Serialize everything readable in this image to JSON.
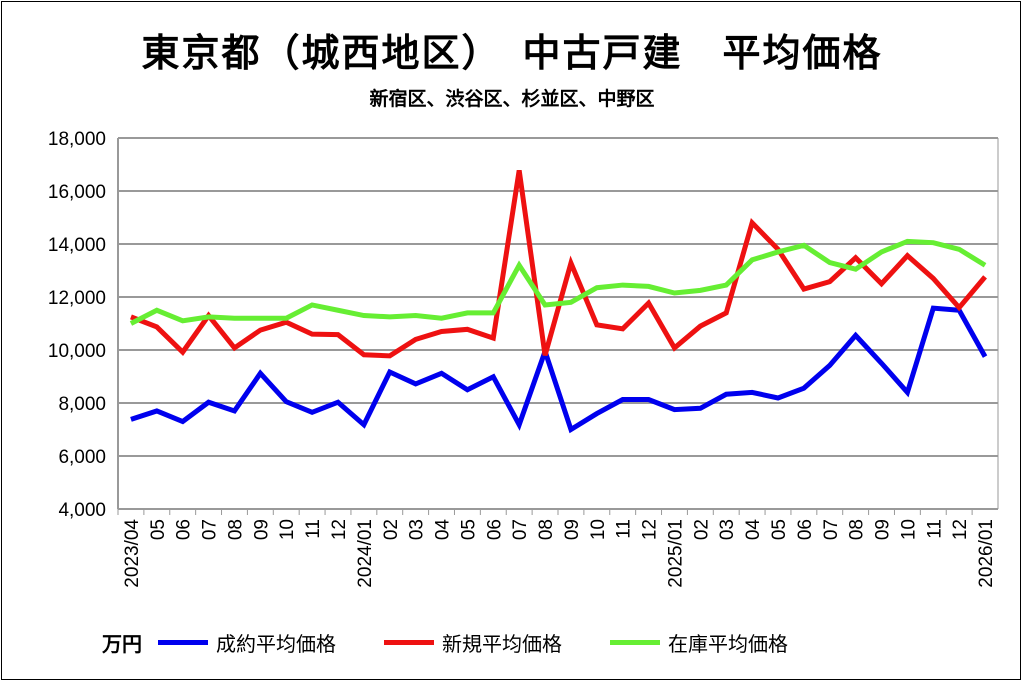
{
  "chart_data": {
    "type": "line",
    "title": "東京都（城西地区）　中古戸建　平均価格",
    "subtitle": "新宿区、渋谷区、杉並区、中野区",
    "unit": "万円",
    "ylim": [
      4000,
      18000
    ],
    "yticks": [
      "4,000",
      "6,000",
      "8,000",
      "10,000",
      "12,000",
      "14,000",
      "16,000",
      "18,000"
    ],
    "grid": true,
    "legend_position": "bottom",
    "categories": [
      "2023/04",
      "05",
      "06",
      "07",
      "08",
      "09",
      "10",
      "11",
      "12",
      "2024/01",
      "02",
      "03",
      "04",
      "05",
      "06",
      "07",
      "08",
      "09",
      "10",
      "11",
      "12",
      "2025/01",
      "02",
      "03",
      "04",
      "05",
      "06",
      "07",
      "08",
      "09",
      "10",
      "11",
      "12",
      "2026/01"
    ],
    "series": [
      {
        "name": "成約平均価格",
        "color": "#0000ee",
        "values": [
          7380,
          7700,
          7300,
          8030,
          7700,
          9120,
          8050,
          7650,
          8030,
          7180,
          9170,
          8720,
          9120,
          8500,
          8990,
          7180,
          9950,
          7000,
          7600,
          8130,
          8130,
          7750,
          7800,
          8330,
          8400,
          8190,
          8560,
          9420,
          10550,
          9500,
          8400,
          11580,
          11500,
          9750
        ]
      },
      {
        "name": "新規平均価格",
        "color": "#ee1111",
        "values": [
          11250,
          10870,
          9920,
          11300,
          10080,
          10750,
          11050,
          10600,
          10580,
          9820,
          9780,
          10400,
          10700,
          10780,
          10450,
          16780,
          9800,
          13280,
          10950,
          10800,
          11770,
          10080,
          10900,
          11400,
          14800,
          13800,
          12300,
          12580,
          13480,
          12500,
          13560,
          12700,
          11600,
          12760
        ]
      },
      {
        "name": "在庫平均価格",
        "color": "#66ee33",
        "values": [
          11000,
          11500,
          11100,
          11250,
          11200,
          11200,
          11200,
          11700,
          11500,
          11300,
          11250,
          11300,
          11200,
          11400,
          11400,
          13200,
          11700,
          11800,
          12350,
          12450,
          12400,
          12150,
          12250,
          12450,
          13400,
          13700,
          13950,
          13300,
          13050,
          13700,
          14100,
          14050,
          13800,
          13200
        ]
      }
    ]
  }
}
